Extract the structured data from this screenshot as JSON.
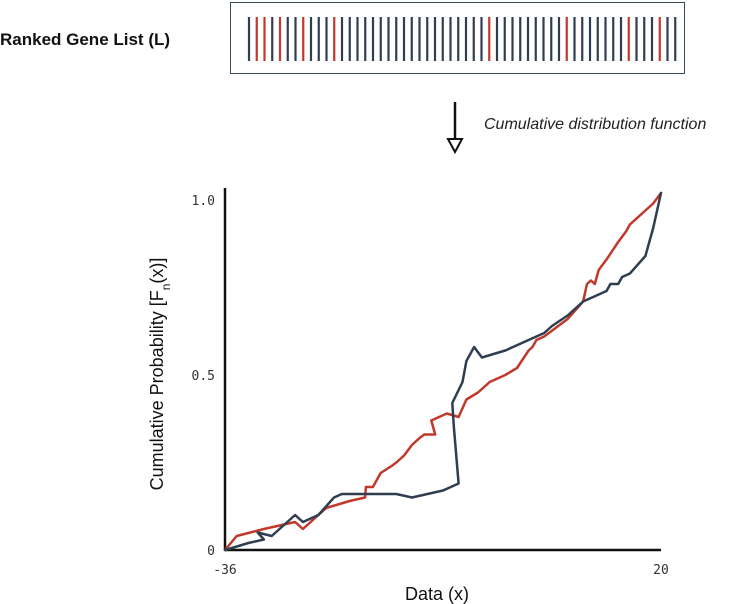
{
  "list_label": "Ranked Gene List (L)",
  "gene_list": {
    "bars": [
      "d",
      "r",
      "r",
      "d",
      "r",
      "d",
      "d",
      "r",
      "d",
      "d",
      "d",
      "r",
      "d",
      "d",
      "d",
      "d",
      "d",
      "d",
      "d",
      "d",
      "d",
      "d",
      "d",
      "d",
      "d",
      "d",
      "d",
      "d",
      "d",
      "d",
      "d",
      "r",
      "d",
      "d",
      "d",
      "d",
      "d",
      "d",
      "d",
      "d",
      "d",
      "r",
      "d",
      "d",
      "d",
      "d",
      "d",
      "d",
      "d",
      "r",
      "d",
      "d",
      "d",
      "r",
      "d",
      "d"
    ],
    "colors": {
      "d": "#2f3e50",
      "r": "#c0392b"
    }
  },
  "arrow_label": "Cumulative distribution function",
  "chart_data": {
    "type": "line",
    "xlabel": "Data (x)",
    "ylabel": "Cumulative Probability [F",
    "ylabel_sub": "n",
    "ylabel_end": "(x)]",
    "xlim": [
      -36,
      20
    ],
    "ylim": [
      0,
      1.0
    ],
    "xticks": [
      {
        "v": -36,
        "label": "-36"
      },
      {
        "v": 20,
        "label": "20"
      }
    ],
    "yticks": [
      {
        "v": 0,
        "label": "0"
      },
      {
        "v": 0.5,
        "label": "0.5"
      },
      {
        "v": 1.0,
        "label": "1.0"
      }
    ],
    "series": [
      {
        "color": "#c0392b",
        "x": [
          -36,
          -34.5,
          -31,
          -27,
          -26,
          -23,
          -20,
          -18,
          -17.9,
          -17,
          -16,
          -14.6,
          -14,
          -13,
          -12,
          -11,
          -10.4,
          -9,
          -9.5,
          -7.5,
          -6,
          -5,
          -3.5,
          -2,
          0,
          1.5,
          3,
          3.5,
          4,
          5,
          8,
          10,
          10.5,
          11,
          11.5,
          12,
          13,
          14.5,
          15.5,
          16,
          18,
          19,
          20
        ],
        "y": [
          0,
          0.04,
          0.06,
          0.08,
          0.06,
          0.12,
          0.14,
          0.15,
          0.18,
          0.18,
          0.22,
          0.24,
          0.25,
          0.27,
          0.3,
          0.32,
          0.33,
          0.33,
          0.37,
          0.39,
          0.38,
          0.43,
          0.45,
          0.48,
          0.5,
          0.52,
          0.57,
          0.58,
          0.6,
          0.61,
          0.66,
          0.71,
          0.76,
          0.77,
          0.76,
          0.8,
          0.83,
          0.88,
          0.91,
          0.93,
          0.97,
          0.99,
          1.02
        ]
      },
      {
        "color": "#2f3e50",
        "x": [
          -36,
          -33,
          -31,
          -31.8,
          -30,
          -28,
          -27,
          -26,
          -24,
          -22,
          -21,
          -19,
          -14,
          -12,
          -8,
          -6,
          -6.6,
          -6.8,
          -5.5,
          -5,
          -4,
          -3,
          0,
          3,
          5,
          6,
          8,
          9,
          10,
          11,
          12,
          13,
          13.5,
          14.5,
          15,
          16,
          18,
          19,
          20
        ],
        "y": [
          0,
          0.02,
          0.03,
          0.05,
          0.04,
          0.08,
          0.1,
          0.08,
          0.1,
          0.15,
          0.16,
          0.16,
          0.16,
          0.15,
          0.17,
          0.19,
          0.35,
          0.42,
          0.48,
          0.54,
          0.58,
          0.55,
          0.57,
          0.6,
          0.62,
          0.64,
          0.67,
          0.69,
          0.71,
          0.72,
          0.73,
          0.74,
          0.76,
          0.76,
          0.78,
          0.79,
          0.84,
          0.92,
          1.02
        ]
      }
    ]
  }
}
